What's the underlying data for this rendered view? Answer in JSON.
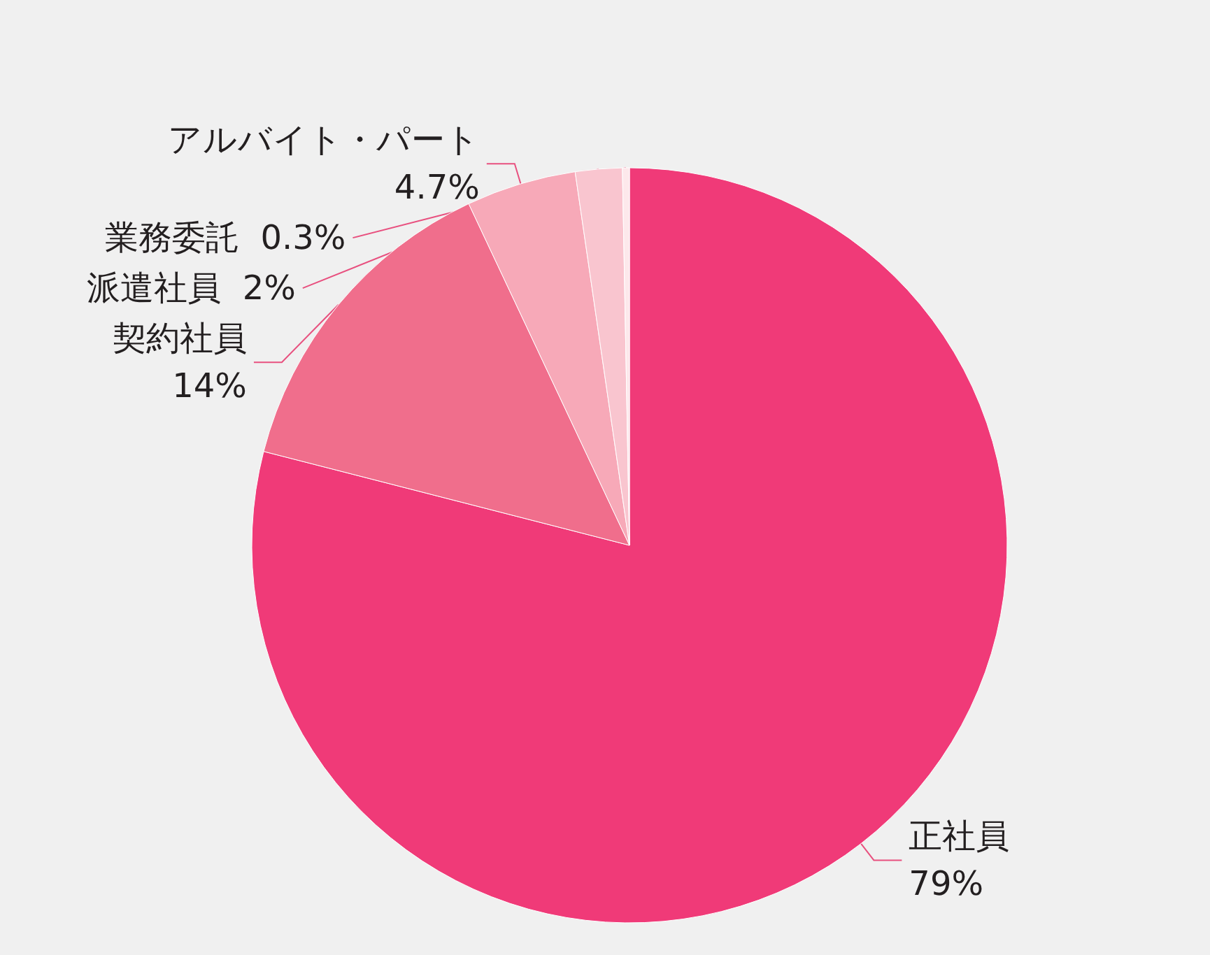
{
  "chart_data": {
    "type": "pie",
    "categories": [
      "正社員",
      "契約社員",
      "アルバイト・パート",
      "派遣社員",
      "業務委託"
    ],
    "values": [
      79,
      14,
      4.7,
      2,
      0.3
    ],
    "value_labels": [
      "79%",
      "14%",
      "4.7%",
      "2%",
      "0.3%"
    ],
    "colors": [
      "#f03a78",
      "#f06e8c",
      "#f7a9b8",
      "#f9c5cf",
      "#fde8eb"
    ],
    "legend": false
  }
}
